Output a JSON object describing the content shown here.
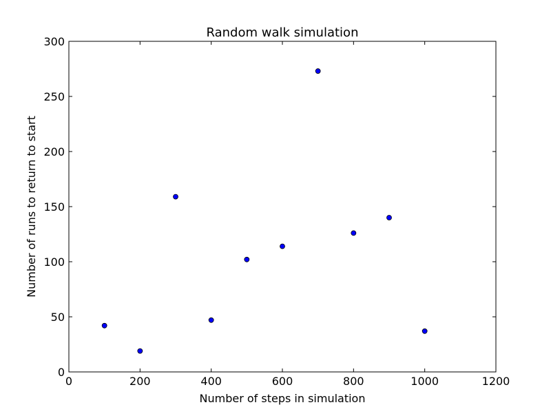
{
  "chart_data": {
    "type": "scatter",
    "title": "Random walk simulation",
    "xlabel": "Number of steps in simulation",
    "ylabel": "Number of runs to return to start",
    "xlim": [
      0,
      1200
    ],
    "ylim": [
      0,
      300
    ],
    "xticks": [
      "0",
      "200",
      "400",
      "600",
      "800",
      "1000",
      "1200"
    ],
    "yticks": [
      "0",
      "50",
      "100",
      "150",
      "200",
      "250",
      "300"
    ],
    "grid": false,
    "marker_color": "#0000ff",
    "series": [
      {
        "x": [
          100,
          200,
          300,
          400,
          500,
          600,
          700,
          800,
          900,
          1000
        ],
        "y": [
          42,
          19,
          159,
          47,
          102,
          114,
          273,
          126,
          140,
          37
        ]
      }
    ]
  }
}
